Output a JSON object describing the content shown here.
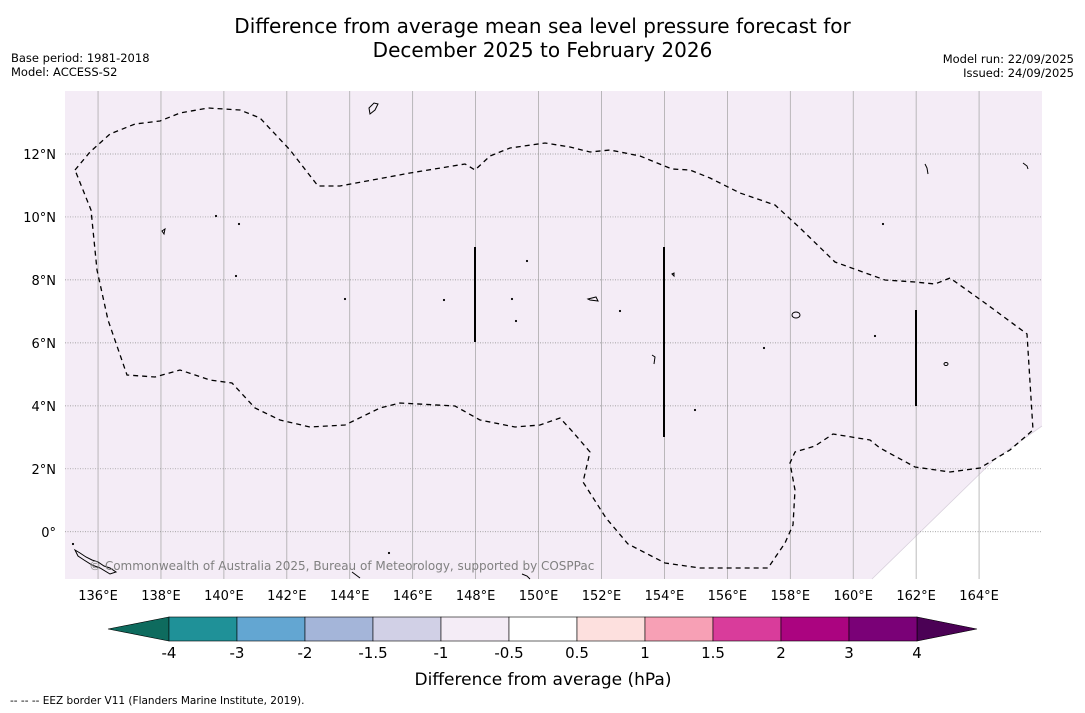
{
  "title": {
    "line1": "Difference from average mean sea level pressure forecast for",
    "line2": "December 2025 to February 2026"
  },
  "meta": {
    "base_period": "Base period: 1981-2018",
    "model": "Model: ACCESS-S2",
    "model_run": "Model run: 22/09/2025",
    "issued": "Issued: 24/09/2025"
  },
  "map": {
    "copyright": "© Commonwealth of Australia 2025, Bureau of Meteorology, supported by COSPPac",
    "lon_ticks": [
      "136°E",
      "138°E",
      "140°E",
      "142°E",
      "144°E",
      "146°E",
      "148°E",
      "150°E",
      "152°E",
      "154°E",
      "156°E",
      "158°E",
      "160°E",
      "162°E",
      "164°E"
    ],
    "lat_ticks": [
      "12°N",
      "10°N",
      "8°N",
      "6°N",
      "4°N",
      "2°N",
      "0°"
    ],
    "lon_values": [
      136,
      138,
      140,
      142,
      144,
      146,
      148,
      150,
      152,
      154,
      156,
      158,
      160,
      162,
      164
    ],
    "lat_values": [
      12,
      10,
      8,
      6,
      4,
      2,
      0
    ],
    "lon_range": [
      134.95,
      166.0
    ],
    "lat_range": [
      -1.5,
      14.0
    ],
    "fill_color": "#f4ecf6"
  },
  "colorbar": {
    "title": "Difference from average (hPa)",
    "tick_labels": [
      "-4",
      "-3",
      "-2",
      "-1.5",
      "-1",
      "-0.5",
      "0.5",
      "1",
      "1.5",
      "2",
      "3",
      "4"
    ],
    "colors": [
      "#0e6b5e",
      "#1f9198",
      "#63a6d2",
      "#a4b5d9",
      "#d1d0e6",
      "#f4ecf6",
      "#ffffff",
      "#fde0de",
      "#f7a0b5",
      "#d93c9b",
      "#ab0480",
      "#7a0177",
      "#4b0155"
    ]
  },
  "footer": {
    "eez_note": "--  --  -- EEZ border V11 (Flanders Marine Institute, 2019)."
  }
}
